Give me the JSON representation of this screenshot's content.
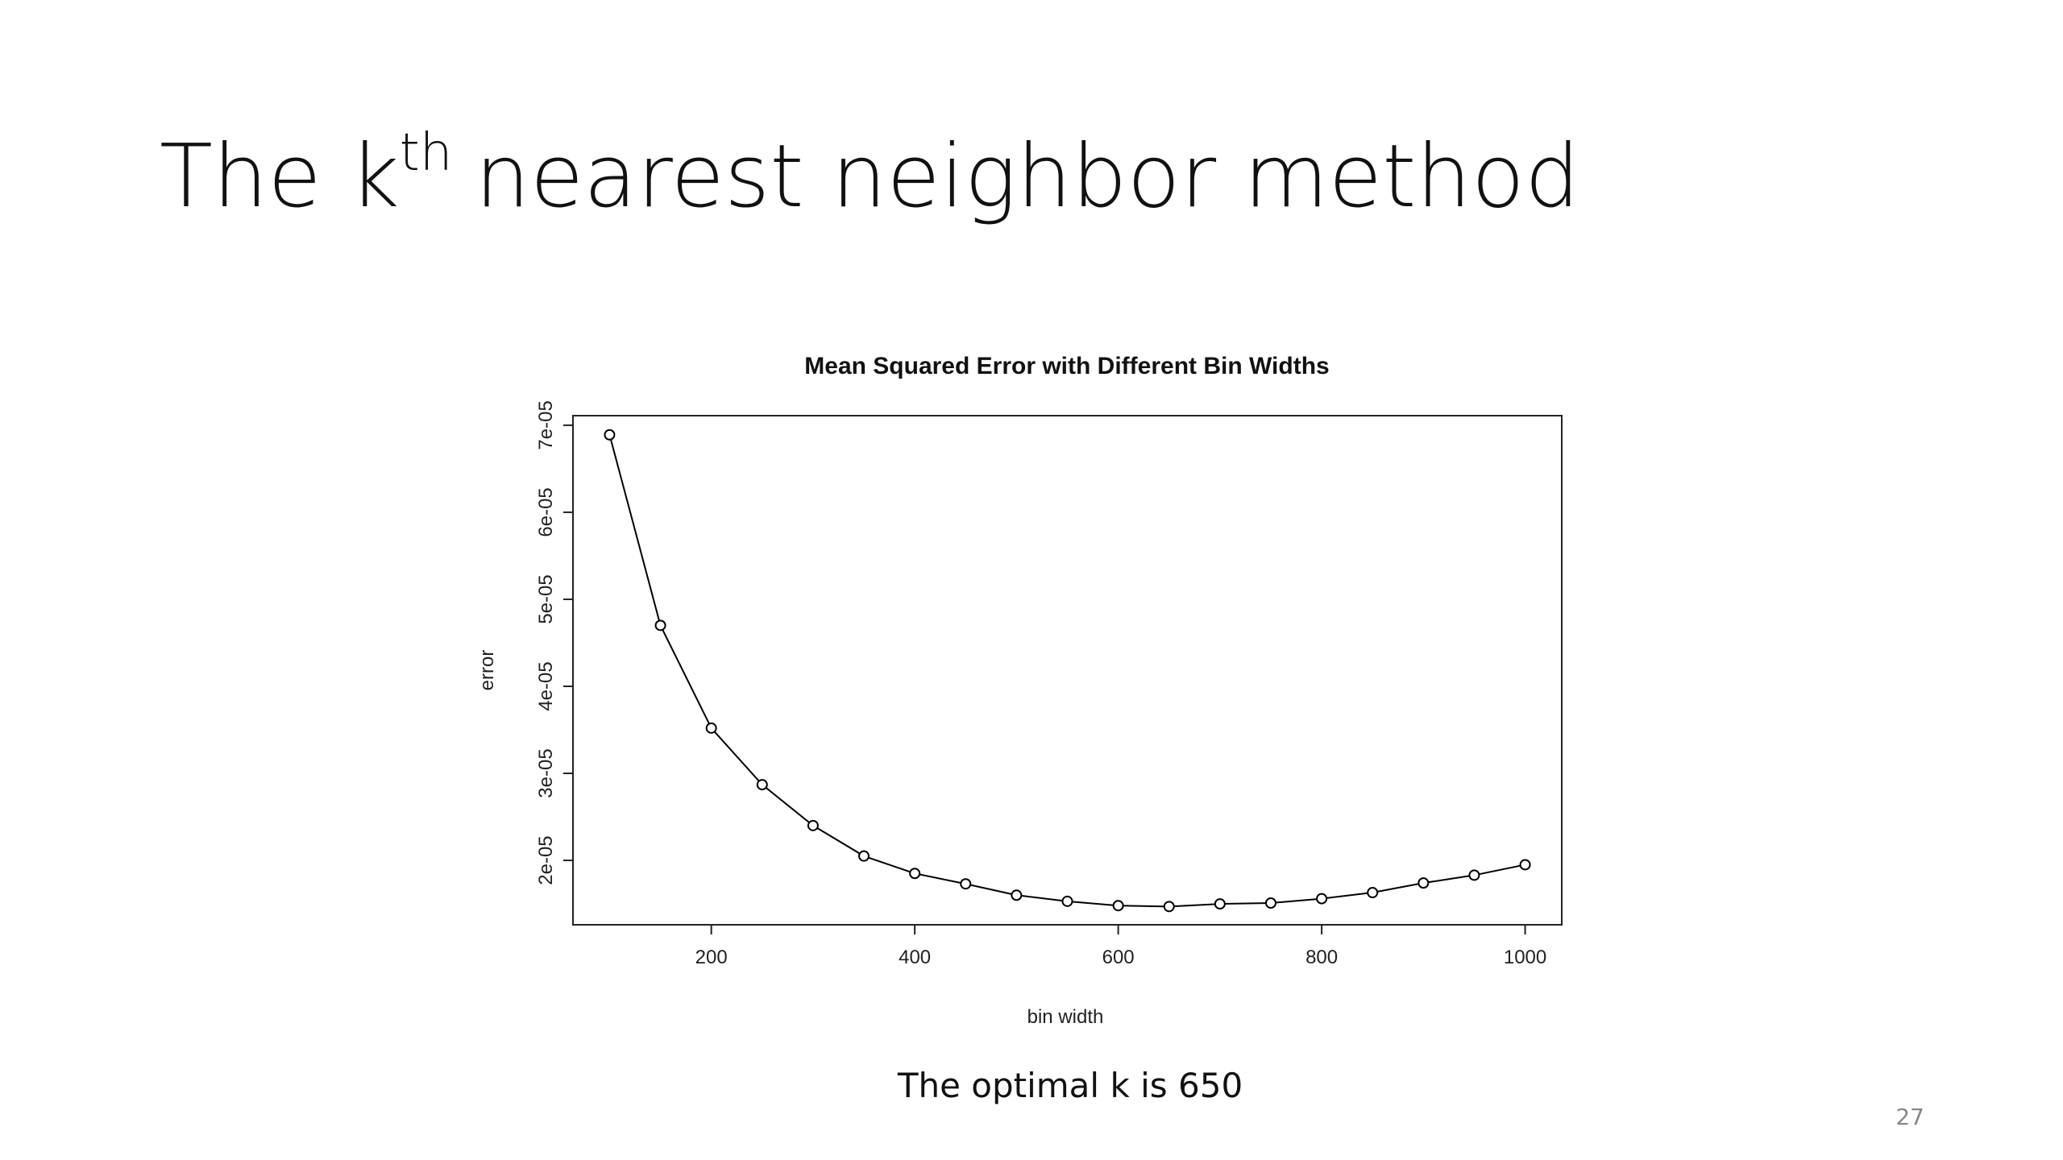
{
  "slide": {
    "title_parts": [
      "The k",
      "th",
      "nearest neighbor method"
    ],
    "caption": "The optimal k is 650",
    "page_number": "27"
  },
  "chart_data": {
    "type": "line",
    "title": "Mean Squared Error with Different Bin Widths",
    "x_label": "bin width",
    "y_label": "error",
    "x": [
      100,
      150,
      200,
      250,
      300,
      350,
      400,
      450,
      500,
      550,
      600,
      650,
      700,
      750,
      800,
      850,
      900,
      950,
      1000
    ],
    "series": [
      {
        "name": "error",
        "color": "#000000",
        "values": [
          6.89e-05,
          4.7e-05,
          3.52e-05,
          2.87e-05,
          2.4e-05,
          2.05e-05,
          1.85e-05,
          1.73e-05,
          1.6e-05,
          1.53e-05,
          1.48e-05,
          1.47e-05,
          1.5e-05,
          1.51e-05,
          1.56e-05,
          1.63e-05,
          1.74e-05,
          1.83e-05,
          1.95e-05
        ]
      }
    ],
    "xlim": [
      64,
      1036
    ],
    "xticks": [
      200,
      400,
      600,
      800,
      1000
    ],
    "ylim": [
      1.26e-05,
      7.11e-05
    ],
    "yticks": [
      {
        "value": 2e-05,
        "label": "2e-05"
      },
      {
        "value": 3e-05,
        "label": "3e-05"
      },
      {
        "value": 4e-05,
        "label": "4e-05"
      },
      {
        "value": 5e-05,
        "label": "5e-05"
      },
      {
        "value": 6e-05,
        "label": "6e-05"
      },
      {
        "value": 7e-05,
        "label": "7e-05"
      }
    ],
    "markers": "open-circle"
  }
}
